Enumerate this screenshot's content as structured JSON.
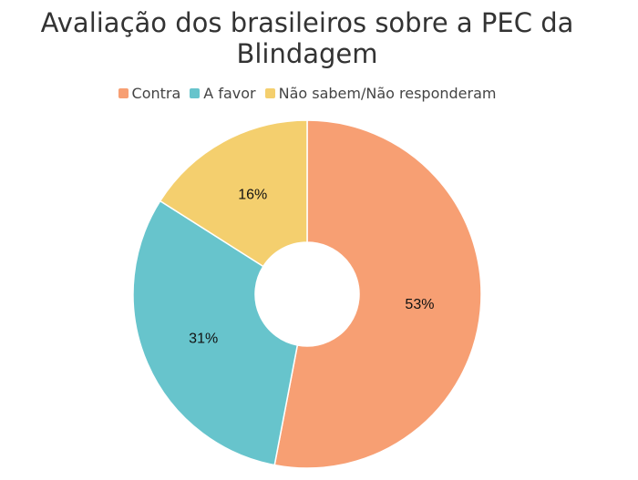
{
  "chart_data": {
    "type": "donut",
    "title": "Avaliação dos brasileiros sobre a PEC da Blindagem",
    "categories": [
      "Contra",
      "A favor",
      "Não sabem/Não responderam"
    ],
    "values": [
      53,
      31,
      16
    ],
    "value_labels": [
      "53%",
      "31%",
      "16%"
    ],
    "colors": [
      "#f79f73",
      "#67c4cc",
      "#f4cf6e"
    ]
  }
}
